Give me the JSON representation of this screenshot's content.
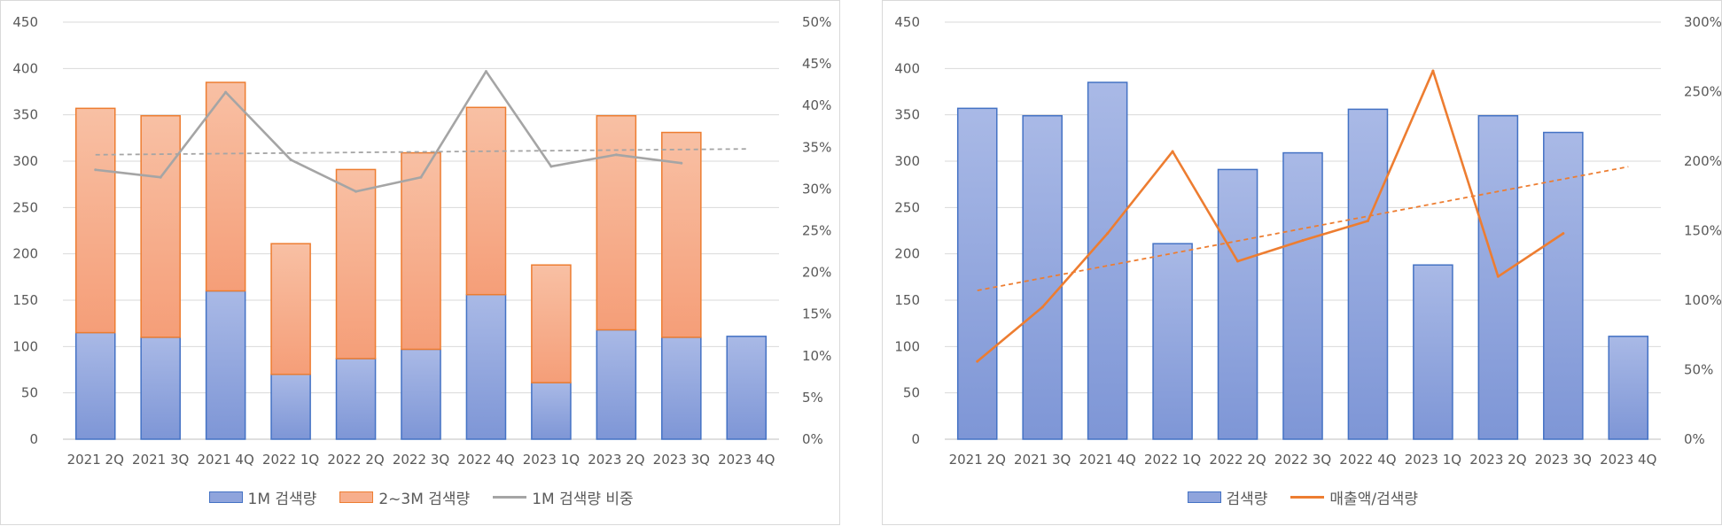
{
  "chart_data": [
    {
      "type": "bar",
      "stacked": true,
      "categories": [
        "2021 2Q",
        "2021 3Q",
        "2021 4Q",
        "2022 1Q",
        "2022 2Q",
        "2022 3Q",
        "2022 4Q",
        "2023 1Q",
        "2023 2Q",
        "2023 3Q",
        "2023 4Q"
      ],
      "series": [
        {
          "name": "1M 검색량",
          "type": "bar",
          "axis": "left",
          "color": "#8fa4dc",
          "border": "#4472c4",
          "values": [
            115,
            110,
            160,
            70,
            87,
            97,
            156,
            61,
            118,
            110,
            111
          ]
        },
        {
          "name": "2~3M 검색량",
          "type": "bar",
          "axis": "left",
          "color": "#f7ae8c",
          "border": "#ed7d31",
          "values": [
            242,
            239,
            225,
            141,
            204,
            212,
            202,
            127,
            231,
            221,
            null
          ]
        },
        {
          "name": "1M 검색량 비중",
          "type": "line",
          "axis": "right",
          "color": "#a5a5a5",
          "values": [
            0.323,
            0.314,
            0.416,
            0.335,
            0.297,
            0.314,
            0.441,
            0.327,
            0.341,
            0.331,
            null
          ]
        }
      ],
      "trendline": {
        "series": "1M 검색량 비중",
        "style": "dashed",
        "color": "#a5a5a5",
        "start": 0.341,
        "end": 0.348
      },
      "y_left": {
        "min": 0,
        "max": 450,
        "step": 50,
        "ticks": [
          "0",
          "50",
          "100",
          "150",
          "200",
          "250",
          "300",
          "350",
          "400",
          "450"
        ]
      },
      "y_right": {
        "min": 0,
        "max": 0.5,
        "step": 0.05,
        "ticks": [
          "0%",
          "5%",
          "10%",
          "15%",
          "20%",
          "25%",
          "30%",
          "35%",
          "40%",
          "45%",
          "50%"
        ]
      },
      "grid": true,
      "legend": "bottom",
      "legend_items": [
        {
          "label": "1M 검색량",
          "kind": "bar",
          "fill": "#8fa4dc",
          "border": "#4472c4"
        },
        {
          "label": "2~3M 검색량",
          "kind": "bar",
          "fill": "#f7ae8c",
          "border": "#ed7d31"
        },
        {
          "label": "1M 검색량 비중",
          "kind": "line",
          "color": "#a5a5a5"
        }
      ]
    },
    {
      "type": "bar",
      "categories": [
        "2021 2Q",
        "2021 3Q",
        "2021 4Q",
        "2022 1Q",
        "2022 2Q",
        "2022 3Q",
        "2022 4Q",
        "2023 1Q",
        "2023 2Q",
        "2023 3Q",
        "2023 4Q"
      ],
      "series": [
        {
          "name": "검색량",
          "type": "bar",
          "axis": "left",
          "color": "#8fa4dc",
          "border": "#4472c4",
          "values": [
            357,
            349,
            385,
            211,
            291,
            309,
            356,
            188,
            349,
            331,
            111
          ]
        },
        {
          "name": "매출액/검색량",
          "type": "line",
          "axis": "right",
          "color": "#ed7d31",
          "values": [
            0.56,
            0.95,
            1.48,
            2.07,
            1.28,
            1.43,
            1.57,
            2.65,
            1.17,
            1.48,
            null
          ]
        }
      ],
      "trendline": {
        "series": "매출액/검색량",
        "style": "dashed",
        "color": "#ed7d31",
        "start": 1.07,
        "end": 1.96
      },
      "y_left": {
        "min": 0,
        "max": 450,
        "step": 50,
        "ticks": [
          "0",
          "50",
          "100",
          "150",
          "200",
          "250",
          "300",
          "350",
          "400",
          "450"
        ]
      },
      "y_right": {
        "min": 0,
        "max": 3.0,
        "step": 0.5,
        "ticks": [
          "0%",
          "50%",
          "100%",
          "150%",
          "200%",
          "250%",
          "300%"
        ]
      },
      "grid": true,
      "legend": "bottom",
      "legend_items": [
        {
          "label": "검색량",
          "kind": "bar",
          "fill": "#8fa4dc",
          "border": "#4472c4"
        },
        {
          "label": "매출액/검색량",
          "kind": "line",
          "color": "#ed7d31"
        }
      ]
    }
  ]
}
